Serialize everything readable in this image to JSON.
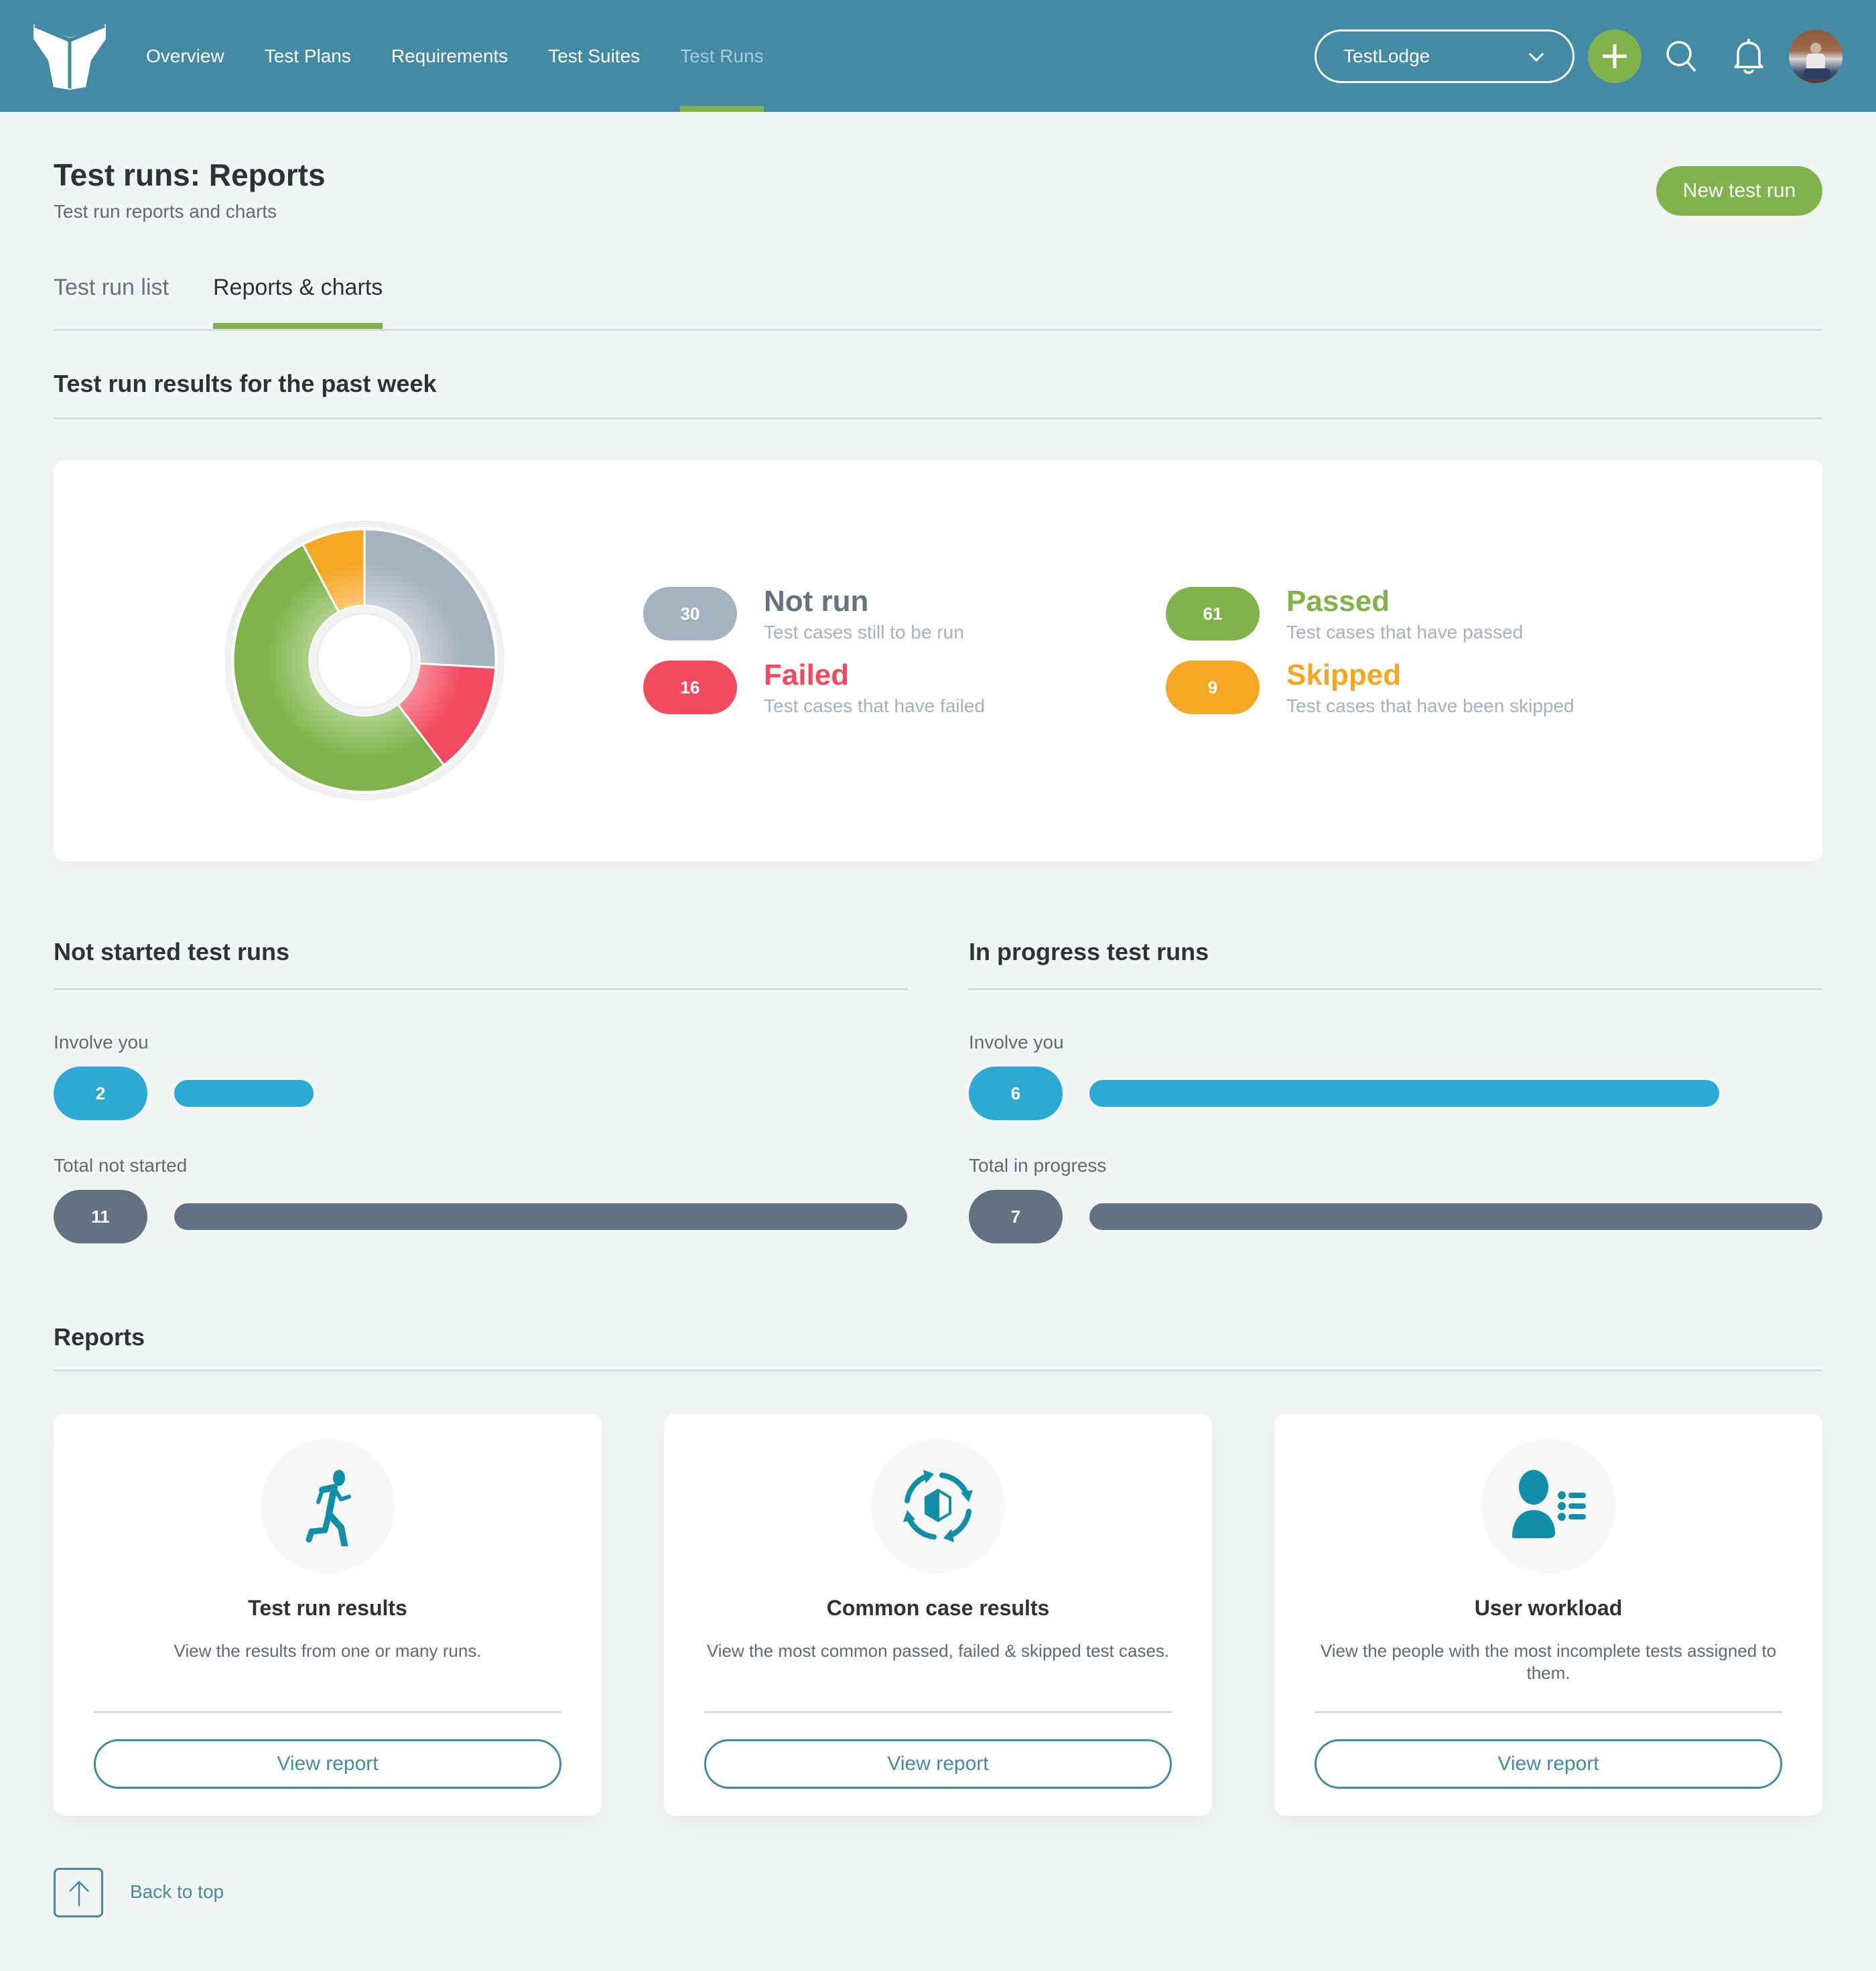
{
  "header": {
    "nav": [
      {
        "label": "Overview",
        "active": false
      },
      {
        "label": "Test Plans",
        "active": false
      },
      {
        "label": "Requirements",
        "active": false
      },
      {
        "label": "Test Suites",
        "active": false
      },
      {
        "label": "Test Runs",
        "active": true
      }
    ],
    "project_select": "TestLodge",
    "icons": [
      "logo-icon",
      "chevron-down-icon",
      "plus-icon",
      "search-icon",
      "bell-icon",
      "avatar"
    ]
  },
  "page": {
    "title": "Test runs: Reports",
    "subtitle": "Test run reports and charts",
    "new_button": "New test run",
    "tabs": [
      {
        "label": "Test run list",
        "active": false
      },
      {
        "label": "Reports & charts",
        "active": true
      }
    ]
  },
  "results": {
    "heading": "Test run results for the past week",
    "legend": [
      {
        "count": "30",
        "title": "Not run",
        "desc": "Test cases still to be run",
        "color": "#a4b1bf",
        "title_color": "#647382"
      },
      {
        "count": "16",
        "title": "Failed",
        "desc": "Test cases that have failed",
        "color": "#f24a5e",
        "title_color": "#f24a5e"
      },
      {
        "count": "61",
        "title": "Passed",
        "desc": "Test cases that have passed",
        "color": "#80b34b",
        "title_color": "#80b34b"
      },
      {
        "count": "9",
        "title": "Skipped",
        "desc": "Test cases that have been skipped",
        "color": "#f5a623",
        "title_color": "#f5a623"
      }
    ]
  },
  "chart_data": {
    "type": "pie",
    "title": "Test run results for the past week",
    "donut": true,
    "categories": [
      "Not run",
      "Failed",
      "Passed",
      "Skipped"
    ],
    "values": [
      30,
      16,
      61,
      9
    ],
    "colors": [
      "#a4b1bf",
      "#f24a5e",
      "#80b34b",
      "#f5a623"
    ],
    "legend_position": "right"
  },
  "not_started": {
    "heading": "Not started test runs",
    "involve_label": "Involve you",
    "involve_count": "2",
    "total_label": "Total not started",
    "total_count": "11"
  },
  "in_progress": {
    "heading": "In progress test runs",
    "involve_label": "Involve you",
    "involve_count": "6",
    "total_label": "Total in progress",
    "total_count": "7"
  },
  "reports": {
    "heading": "Reports",
    "cards": [
      {
        "title": "Test run results",
        "desc": "View the results from one or many runs.",
        "button": "View report",
        "icon": "runner-icon"
      },
      {
        "title": "Common case results",
        "desc": "View the most common passed, failed & skipped test cases.",
        "button": "View report",
        "icon": "cycle-icon"
      },
      {
        "title": "User workload",
        "desc": "View the people with the most incomplete tests assigned to them.",
        "button": "View report",
        "icon": "user-list-icon"
      }
    ]
  },
  "footer": {
    "back_to_top": "Back to top"
  }
}
